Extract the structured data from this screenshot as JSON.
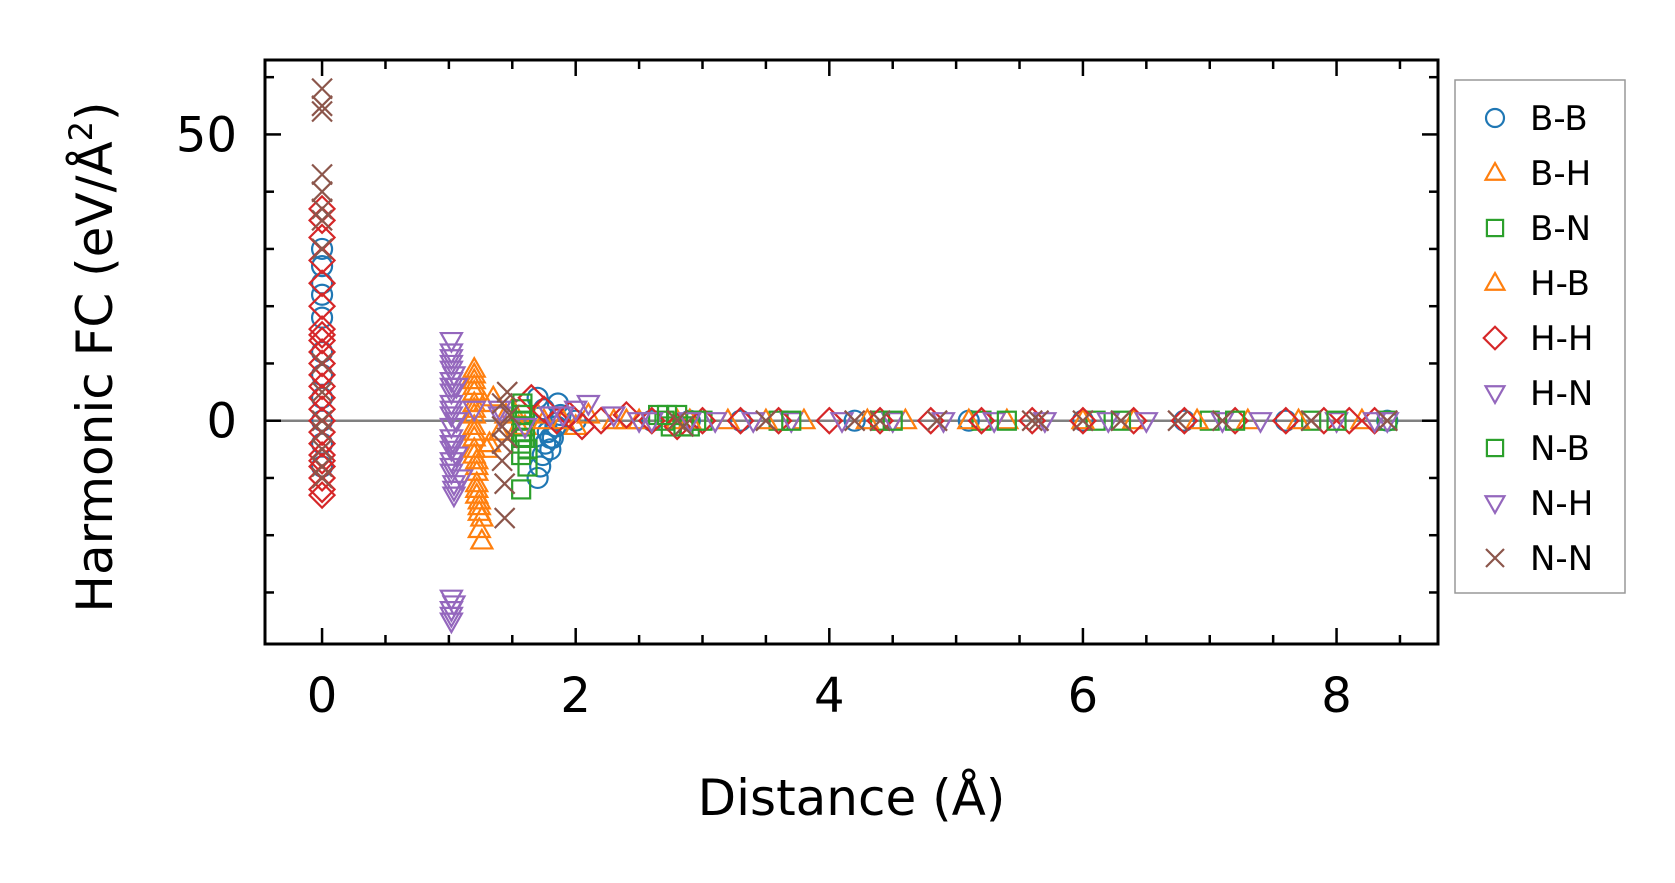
{
  "chart_data": {
    "type": "scatter",
    "title": "",
    "xlabel": "Distance (Å)",
    "ylabel_main": "Harmonic FC (eV/Å",
    "ylabel_sup": "2",
    "ylabel_close": ")",
    "xlim": [
      -0.45,
      8.8
    ],
    "ylim": [
      -39,
      63
    ],
    "xticks": [
      0,
      2,
      4,
      6,
      8
    ],
    "xtick_labels": [
      "0",
      "2",
      "4",
      "6",
      "8"
    ],
    "yticks": [
      0,
      50
    ],
    "ytick_labels": [
      "0",
      "50"
    ],
    "zero_line": true,
    "grid": false,
    "legend_position": "outside-right",
    "series": [
      {
        "name": "B-B",
        "marker": "circle",
        "color": "#1f77b4",
        "x": [
          0,
          0,
          0,
          0,
          0,
          0,
          0,
          0,
          0,
          0,
          0,
          1.7,
          1.72,
          1.74,
          1.76,
          1.78,
          1.8,
          1.82,
          1.84,
          1.86,
          1.88,
          1.7,
          1.75,
          1.8,
          1.85,
          2.0,
          2.6,
          2.9,
          3.3,
          4.2,
          5.1,
          6.0,
          6.8,
          7.6,
          8.4
        ],
        "y": [
          30,
          27,
          24,
          22,
          18,
          12,
          8,
          4,
          0,
          -4,
          -8,
          -10,
          -8,
          -6,
          -4,
          -2,
          -5,
          -3,
          -1,
          3,
          1,
          4,
          2,
          -3,
          -1,
          0,
          0,
          0,
          0,
          0,
          0,
          0,
          0,
          0,
          0
        ]
      },
      {
        "name": "B-H",
        "marker": "triangle-up",
        "color": "#ff7f0e",
        "x": [
          1.2,
          1.2,
          1.2,
          1.2,
          1.2,
          1.2,
          1.2,
          1.2,
          1.22,
          1.22,
          1.22,
          1.22,
          1.24,
          1.24,
          1.26,
          1.26,
          1.3,
          1.35,
          1.4,
          1.5,
          1.6,
          1.7,
          1.9,
          2.1,
          2.3,
          2.5,
          2.8,
          3.2,
          3.8,
          4.6,
          5.4,
          6.4,
          7.3,
          8.2
        ],
        "y": [
          9,
          7,
          5,
          3,
          1,
          -1,
          -3,
          -5,
          -7,
          -9,
          -11,
          -13,
          -15,
          -19,
          -21,
          -17,
          -5,
          4,
          -2,
          2,
          -1,
          1,
          0,
          1,
          0,
          0,
          0,
          0,
          0,
          0,
          0,
          0,
          0,
          0
        ]
      },
      {
        "name": "B-N",
        "marker": "square",
        "color": "#2ca02c",
        "x": [
          1.57,
          1.57,
          1.57,
          1.57,
          1.57,
          1.57,
          1.6,
          1.6,
          1.6,
          2.65,
          2.7,
          2.75,
          2.8,
          2.9,
          3.0,
          3.6,
          4.4,
          5.2,
          6.1,
          7.0,
          7.8,
          8.4
        ],
        "y": [
          2,
          0,
          -2,
          -4,
          -6,
          -12,
          1,
          -1,
          -3,
          1,
          0,
          -1,
          1,
          -1,
          0,
          0,
          0,
          0,
          0,
          0,
          0,
          0
        ]
      },
      {
        "name": "H-B",
        "marker": "triangle-up",
        "color": "#ff7f0e",
        "x": [
          1.2,
          1.2,
          1.2,
          1.2,
          1.2,
          1.22,
          1.22,
          1.24,
          1.24,
          1.28,
          1.32,
          1.45,
          1.55,
          1.75,
          2.0,
          2.4,
          2.9,
          3.5,
          4.3,
          5.1,
          6.0,
          6.9,
          7.7
        ],
        "y": [
          8,
          6,
          2,
          -2,
          -6,
          -8,
          -12,
          -14,
          -16,
          3,
          -4,
          1,
          -1,
          0,
          -1,
          0,
          0,
          0,
          0,
          0,
          0,
          0,
          0
        ]
      },
      {
        "name": "H-H",
        "marker": "diamond",
        "color": "#d62728",
        "x": [
          0,
          0,
          0,
          0,
          0,
          0,
          0,
          0,
          0,
          0,
          0,
          0,
          0,
          0,
          0,
          0,
          0,
          0,
          0,
          0,
          0,
          0,
          0,
          0,
          1.65,
          1.75,
          1.85,
          1.95,
          2.05,
          2.2,
          2.4,
          2.6,
          2.8,
          3.0,
          3.3,
          3.6,
          4.0,
          4.4,
          4.8,
          5.2,
          5.6,
          6.0,
          6.4,
          6.8,
          7.2,
          7.6,
          7.9,
          8.1,
          8.3
        ],
        "y": [
          37,
          35,
          32,
          28,
          24,
          20,
          16,
          14,
          12,
          10,
          8,
          6,
          4,
          2,
          0,
          -2,
          -4,
          -6,
          -8,
          -10,
          -12,
          -13,
          15,
          -7,
          4,
          2,
          0,
          1,
          -1,
          0,
          1,
          0,
          -1,
          0,
          0,
          0,
          0,
          0,
          0,
          0,
          0,
          0,
          0,
          0,
          0,
          0,
          0,
          0,
          0
        ]
      },
      {
        "name": "H-N",
        "marker": "triangle-down",
        "color": "#9467bd",
        "x": [
          1.02,
          1.02,
          1.02,
          1.02,
          1.02,
          1.02,
          1.02,
          1.02,
          1.02,
          1.02,
          1.02,
          1.02,
          1.04,
          1.04,
          1.04,
          1.04,
          1.06,
          1.06,
          1.02,
          1.02,
          1.02,
          1.02,
          1.1,
          1.2,
          1.4,
          1.6,
          1.8,
          2.0,
          2.3,
          2.6,
          3.1,
          3.7,
          4.5,
          5.3,
          6.2,
          7.1,
          8.0,
          8.4
        ],
        "y": [
          14,
          11,
          9,
          7,
          5,
          3,
          1,
          -1,
          -3,
          -5,
          -7,
          -9,
          -11,
          -13,
          8,
          -4,
          6,
          -6,
          -31,
          -33,
          -34,
          -35,
          -10,
          2,
          1,
          -1,
          1,
          2,
          1,
          0,
          0,
          0,
          0,
          0,
          0,
          0,
          0,
          0
        ]
      },
      {
        "name": "N-B",
        "marker": "square",
        "color": "#2ca02c",
        "x": [
          1.58,
          1.58,
          1.58,
          1.58,
          1.62,
          1.62,
          2.72,
          2.85,
          2.95,
          3.7,
          4.5,
          5.4,
          6.3,
          7.2,
          8.0
        ],
        "y": [
          3,
          1,
          -1,
          -3,
          -5,
          -8,
          1,
          -1,
          0,
          0,
          0,
          0,
          0,
          0,
          0
        ]
      },
      {
        "name": "N-H",
        "marker": "triangle-down",
        "color": "#9467bd",
        "x": [
          1.02,
          1.02,
          1.02,
          1.02,
          1.02,
          1.02,
          1.04,
          1.04,
          1.06,
          1.4,
          1.6,
          1.9,
          2.1,
          2.5,
          2.9,
          3.4,
          4.1,
          4.9,
          5.7,
          6.5,
          7.4,
          8.3
        ],
        "y": [
          12,
          10,
          6,
          2,
          -4,
          -8,
          -12,
          -32,
          0,
          2,
          -1,
          1,
          3,
          0,
          0,
          0,
          0,
          0,
          0,
          0,
          0,
          0
        ]
      },
      {
        "name": "N-N",
        "marker": "x",
        "color": "#8c564b",
        "x": [
          0,
          0,
          0,
          0,
          0,
          0,
          0,
          0,
          0,
          0,
          0,
          0,
          0,
          0,
          0,
          1.42,
          1.42,
          1.42,
          1.42,
          1.44,
          1.44,
          1.46,
          1.46,
          1.48,
          2.8,
          2.85,
          3.5,
          4.2,
          4.4,
          4.85,
          5.6,
          5.65,
          6.0,
          6.3,
          6.75,
          7.1,
          7.8,
          8.4
        ],
        "y": [
          58,
          55,
          54,
          43,
          40,
          37,
          35,
          30,
          10,
          5,
          0,
          -2,
          -5,
          -8,
          -10,
          3,
          -1,
          -4,
          -7,
          -11,
          -17,
          5,
          -3,
          1,
          0,
          -1,
          0,
          0,
          0,
          0,
          0,
          0,
          0,
          0,
          0,
          0,
          0,
          0
        ]
      }
    ]
  }
}
